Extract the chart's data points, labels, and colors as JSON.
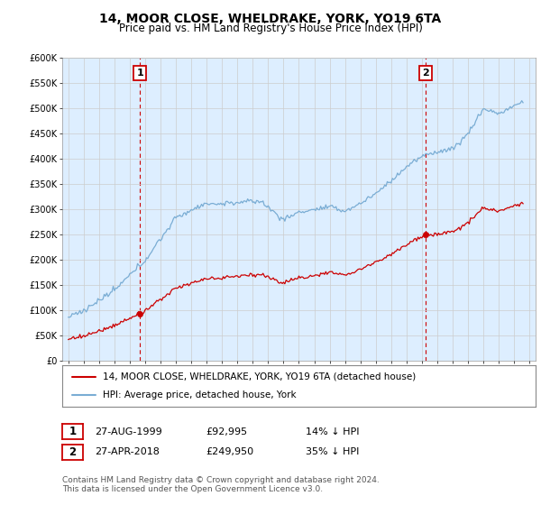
{
  "title": "14, MOOR CLOSE, WHELDRAKE, YORK, YO19 6TA",
  "subtitle": "Price paid vs. HM Land Registry's House Price Index (HPI)",
  "title_fontsize": 10,
  "subtitle_fontsize": 8.5,
  "legend_line1": "14, MOOR CLOSE, WHELDRAKE, YORK, YO19 6TA (detached house)",
  "legend_line2": "HPI: Average price, detached house, York",
  "point1_label": "1",
  "point1_date": "27-AUG-1999",
  "point1_price": "£92,995",
  "point1_hpi": "14% ↓ HPI",
  "point2_label": "2",
  "point2_date": "27-APR-2018",
  "point2_price": "£249,950",
  "point2_hpi": "35% ↓ HPI",
  "footer": "Contains HM Land Registry data © Crown copyright and database right 2024.\nThis data is licensed under the Open Government Licence v3.0.",
  "red_color": "#cc0000",
  "blue_color": "#7aadd4",
  "grid_color": "#cccccc",
  "chart_bg": "#ddeeff",
  "bg_color": "#ffffff",
  "ylim": [
    0,
    600000
  ],
  "yticks": [
    0,
    50000,
    100000,
    150000,
    200000,
    250000,
    300000,
    350000,
    400000,
    450000,
    500000,
    550000,
    600000
  ],
  "xlim_start": 1994.6,
  "xlim_end": 2025.4,
  "sale1_year": 1999.65,
  "sale1_price": 92995,
  "sale2_year": 2018.25,
  "sale2_price": 249950,
  "xtick_years": [
    1995,
    1996,
    1997,
    1998,
    1999,
    2000,
    2001,
    2002,
    2003,
    2004,
    2005,
    2006,
    2007,
    2008,
    2009,
    2010,
    2011,
    2012,
    2013,
    2014,
    2015,
    2016,
    2017,
    2018,
    2019,
    2020,
    2021,
    2022,
    2023,
    2024,
    2025
  ]
}
